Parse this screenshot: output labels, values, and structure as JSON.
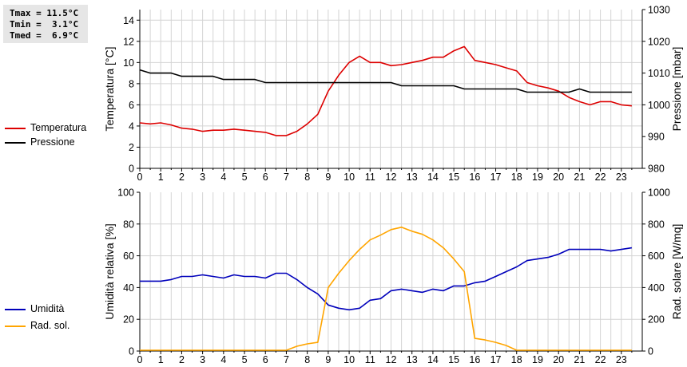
{
  "stats": {
    "tmax": "Tmax = 11.5°C",
    "tmin": "Tmin =  3.1°C",
    "tmed": "Tmed =  6.9°C"
  },
  "colors": {
    "temperature": "#dd0000",
    "pressure": "#000000",
    "humidity": "#0000bb",
    "radiation": "#ffa500",
    "grid": "#d4d4d4",
    "stats_bg": "#e6e6e6"
  },
  "chart_data": [
    {
      "type": "line",
      "xlabel": "",
      "xticks": [
        "0",
        "1",
        "2",
        "3",
        "4",
        "5",
        "6",
        "7",
        "8",
        "9",
        "10",
        "11",
        "12",
        "13",
        "14",
        "15",
        "16",
        "17",
        "18",
        "19",
        "20",
        "21",
        "22",
        "23"
      ],
      "xlim": [
        0,
        24
      ],
      "ylabel_left": "Temperatura [°C]",
      "ylim_left": [
        0,
        15
      ],
      "yticks_left": [
        0,
        2,
        4,
        6,
        8,
        10,
        12,
        14
      ],
      "ylabel_right": "Pressione [mbar]",
      "ylim_right": [
        980,
        1030
      ],
      "yticks_right": [
        980,
        990,
        1000,
        1010,
        1020,
        1030
      ],
      "grid": true,
      "legend_placement": "left",
      "series": [
        {
          "name": "Temperatura",
          "axis": "left",
          "x": [
            0,
            0.5,
            1,
            1.5,
            2,
            2.5,
            3,
            3.5,
            4,
            4.5,
            5,
            5.5,
            6,
            6.5,
            7,
            7.5,
            8,
            8.5,
            9,
            9.5,
            10,
            10.5,
            11,
            11.5,
            12,
            12.5,
            13,
            13.5,
            14,
            14.5,
            15,
            15.5,
            16,
            16.5,
            17,
            17.5,
            18,
            18.5,
            19,
            19.5,
            20,
            20.5,
            21,
            21.5,
            22,
            22.5,
            23,
            23.5
          ],
          "values": [
            4.3,
            4.2,
            4.3,
            4.1,
            3.8,
            3.7,
            3.5,
            3.6,
            3.6,
            3.7,
            3.6,
            3.5,
            3.4,
            3.1,
            3.1,
            3.5,
            4.2,
            5.1,
            7.3,
            8.8,
            10.0,
            10.6,
            10.0,
            10.0,
            9.7,
            9.8,
            10.0,
            10.2,
            10.5,
            10.5,
            11.1,
            11.5,
            10.2,
            10.0,
            9.8,
            9.5,
            9.2,
            8.1,
            7.8,
            7.6,
            7.3,
            6.7,
            6.3,
            6.0,
            6.3,
            6.3,
            6.0,
            5.9
          ]
        },
        {
          "name": "Pressione",
          "axis": "right",
          "x": [
            0,
            0.5,
            1,
            1.5,
            2,
            2.5,
            3,
            3.5,
            4,
            4.5,
            5,
            5.5,
            6,
            6.5,
            7,
            7.5,
            8,
            8.5,
            9,
            9.5,
            10,
            10.5,
            11,
            11.5,
            12,
            12.5,
            13,
            13.5,
            14,
            14.5,
            15,
            15.5,
            16,
            16.5,
            17,
            17.5,
            18,
            18.5,
            19,
            19.5,
            20,
            20.5,
            21,
            21.5,
            22,
            22.5,
            23,
            23.5
          ],
          "values": [
            1011,
            1010,
            1010,
            1010,
            1009,
            1009,
            1009,
            1009,
            1008,
            1008,
            1008,
            1008,
            1007,
            1007,
            1007,
            1007,
            1007,
            1007,
            1007,
            1007,
            1007,
            1007,
            1007,
            1007,
            1007,
            1006,
            1006,
            1006,
            1006,
            1006,
            1006,
            1005,
            1005,
            1005,
            1005,
            1005,
            1005,
            1004,
            1004,
            1004,
            1004,
            1004,
            1005,
            1004,
            1004,
            1004,
            1004,
            1004
          ]
        }
      ]
    },
    {
      "type": "line",
      "xlabel": "",
      "xticks": [
        "0",
        "1",
        "2",
        "3",
        "4",
        "5",
        "6",
        "7",
        "8",
        "9",
        "10",
        "11",
        "12",
        "13",
        "14",
        "15",
        "16",
        "17",
        "18",
        "19",
        "20",
        "21",
        "22",
        "23"
      ],
      "xlim": [
        0,
        24
      ],
      "ylabel_left": "Umidità relativa [%]",
      "ylim_left": [
        0,
        100
      ],
      "yticks_left": [
        0,
        20,
        40,
        60,
        80,
        100
      ],
      "ylabel_right": "Rad. solare [W/mq]",
      "ylim_right": [
        0,
        1000
      ],
      "yticks_right": [
        0,
        200,
        400,
        600,
        800,
        1000
      ],
      "grid": true,
      "legend_placement": "left",
      "series": [
        {
          "name": "Umidità",
          "axis": "left",
          "x": [
            0,
            0.5,
            1,
            1.5,
            2,
            2.5,
            3,
            3.5,
            4,
            4.5,
            5,
            5.5,
            6,
            6.5,
            7,
            7.5,
            8,
            8.5,
            9,
            9.5,
            10,
            10.5,
            11,
            11.5,
            12,
            12.5,
            13,
            13.5,
            14,
            14.5,
            15,
            15.5,
            16,
            16.5,
            17,
            17.5,
            18,
            18.5,
            19,
            19.5,
            20,
            20.5,
            21,
            21.5,
            22,
            22.5,
            23,
            23.5
          ],
          "values": [
            44,
            44,
            44,
            45,
            47,
            47,
            48,
            47,
            46,
            48,
            47,
            47,
            46,
            49,
            49,
            45,
            40,
            36,
            29,
            27,
            26,
            27,
            32,
            33,
            38,
            39,
            38,
            37,
            39,
            38,
            41,
            41,
            43,
            44,
            47,
            50,
            53,
            57,
            58,
            59,
            61,
            64,
            64,
            64,
            64,
            63,
            64,
            65
          ]
        },
        {
          "name": "Rad. sol.",
          "axis": "right",
          "x": [
            0,
            0.5,
            1,
            1.5,
            2,
            2.5,
            3,
            3.5,
            4,
            4.5,
            5,
            5.5,
            6,
            6.5,
            7,
            7.5,
            8,
            8.5,
            9,
            9.5,
            10,
            10.5,
            11,
            11.5,
            12,
            12.5,
            13,
            13.5,
            14,
            14.5,
            15,
            15.5,
            16,
            16.5,
            17,
            17.5,
            18,
            18.5,
            19,
            19.5,
            20,
            20.5,
            21,
            21.5,
            22,
            22.5,
            23,
            23.5
          ],
          "values": [
            5,
            5,
            5,
            5,
            5,
            5,
            5,
            5,
            5,
            5,
            5,
            5,
            5,
            5,
            5,
            30,
            45,
            55,
            400,
            490,
            570,
            640,
            700,
            730,
            765,
            780,
            755,
            735,
            700,
            650,
            580,
            500,
            80,
            70,
            55,
            35,
            5,
            5,
            5,
            5,
            5,
            5,
            5,
            5,
            5,
            5,
            5,
            5
          ]
        }
      ]
    }
  ]
}
